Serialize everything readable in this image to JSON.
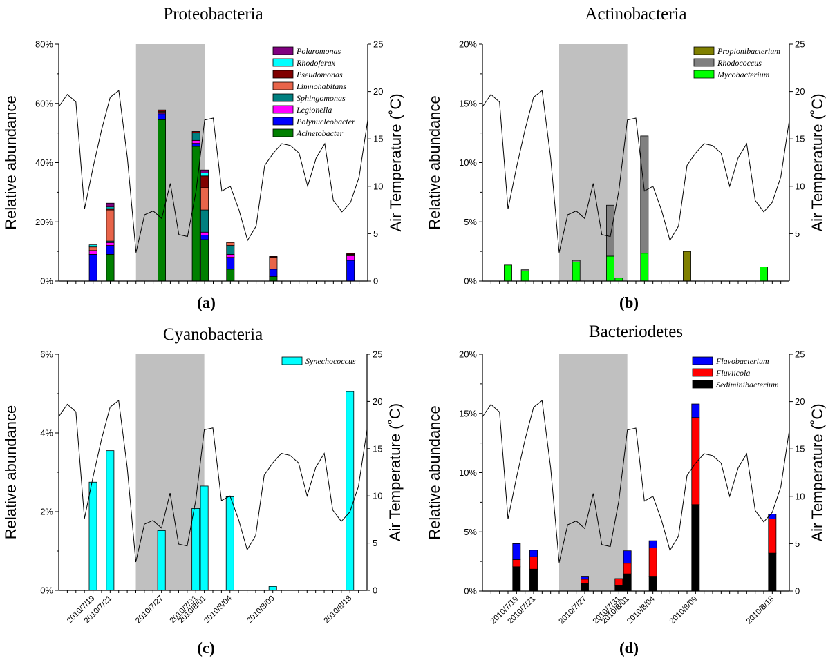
{
  "figure": {
    "x_date_labels": [
      "2010/7/19",
      "2010/7/21",
      "2010/7/27",
      "2010/7/31",
      "2010/8/01",
      "2010/8/04",
      "2010/8/09",
      "2010/8/18"
    ]
  },
  "chart_data": [
    {
      "id": "a",
      "type": "bar",
      "stacked": true,
      "title": "Proteobacteria",
      "panel_label": "(a)",
      "ylabel": "Relative  abundance",
      "y2label": "Air Temperature  (˚C)",
      "ylim": [
        0,
        80
      ],
      "yticks": [
        0,
        20,
        40,
        60,
        80
      ],
      "ytick_labels": [
        "0%",
        "20%",
        "40%",
        "60%",
        "80%"
      ],
      "y2lim": [
        0,
        25
      ],
      "y2ticks": [
        0,
        5,
        10,
        15,
        20,
        25
      ],
      "shaded_sampling_days": [
        9,
        17
      ],
      "legend_placement": "top-right",
      "series": [
        {
          "name": "Polaromonas",
          "color": "#800080"
        },
        {
          "name": "Rhodoferax",
          "color": "#00ffff"
        },
        {
          "name": "Pseudomonas",
          "color": "#800000"
        },
        {
          "name": "Limnohabitans",
          "color": "#e8644a"
        },
        {
          "name": "Sphingomonas",
          "color": "#008080"
        },
        {
          "name": "Legionella",
          "color": "#ff00ff"
        },
        {
          "name": "Polynucleobacter",
          "color": "#0000ff"
        },
        {
          "name": "Acinetobacter",
          "color": "#008000"
        }
      ],
      "bars": [
        {
          "day": 4,
          "values": {
            "Polynucleobacter": 9,
            "Legionella": 1.3,
            "Limnohabitans": 1.2,
            "Rhodoferax": 0.7
          }
        },
        {
          "day": 6,
          "values": {
            "Acinetobacter": 9,
            "Polynucleobacter": 3,
            "Legionella": 1,
            "Limnohabitans": 10.5,
            "Sphingomonas": 0.5,
            "Pseudomonas": 0.5,
            "Rhodoferax": 0.5,
            "Polaromonas": 1.3
          }
        },
        {
          "day": 12,
          "values": {
            "Acinetobacter": 54.5,
            "Polynucleobacter": 2,
            "Legionella": 0.5,
            "Limnohabitans": 0.3,
            "Pseudomonas": 0.5
          }
        },
        {
          "day": 16,
          "values": {
            "Acinetobacter": 45.5,
            "Polynucleobacter": 1,
            "Legionella": 1,
            "Sphingomonas": 2.5,
            "Pseudomonas": 0.5
          }
        },
        {
          "day": 17,
          "values": {
            "Acinetobacter": 14,
            "Polynucleobacter": 1.5,
            "Legionella": 1,
            "Sphingomonas": 7.5,
            "Limnohabitans": 7.5,
            "Pseudomonas": 4,
            "Rhodoferax": 1,
            "Polaromonas": 1
          }
        },
        {
          "day": 20,
          "values": {
            "Acinetobacter": 4,
            "Polynucleobacter": 4,
            "Legionella": 1,
            "Sphingomonas": 3,
            "Limnohabitans": 1
          }
        },
        {
          "day": 25,
          "values": {
            "Acinetobacter": 1.5,
            "Polynucleobacter": 2.5,
            "Limnohabitans": 4,
            "Pseudomonas": 0.3
          }
        },
        {
          "day": 34,
          "values": {
            "Polynucleobacter": 7,
            "Legionella": 1.5,
            "Limnohabitans": 0.5,
            "Pseudomonas": 0.3
          }
        }
      ],
      "temperature_series": [
        18.4,
        19.7,
        18.9,
        7.6,
        12,
        16,
        19.4,
        20.1,
        13,
        3,
        7,
        7.4,
        6.6,
        10.3,
        4.9,
        4.7,
        9.5,
        17,
        17.2,
        9.5,
        10,
        7.5,
        4.3,
        5.8,
        12.2,
        13.5,
        14.5,
        14.3,
        13.5,
        10,
        13,
        14.5,
        8.5,
        7.3,
        8.3,
        11,
        17
      ]
    },
    {
      "id": "b",
      "type": "bar",
      "stacked": true,
      "title": "Actinobacteria",
      "panel_label": "(b)",
      "ylabel": "Relative  abundance",
      "y2label": "Air Temperature  (˚C)",
      "ylim": [
        0,
        20
      ],
      "yticks": [
        0,
        5,
        10,
        15,
        20
      ],
      "ytick_labels": [
        "0%",
        "5%",
        "10%",
        "15%",
        "20%"
      ],
      "y2lim": [
        0,
        25
      ],
      "y2ticks": [
        5,
        10,
        15,
        20,
        25
      ],
      "shaded_sampling_days": [
        9,
        17
      ],
      "legend_placement": "top-right",
      "series": [
        {
          "name": "Propionibacterium",
          "color": "#808000"
        },
        {
          "name": "Rhodococcus",
          "color": "#808080"
        },
        {
          "name": "Mycobacterium",
          "color": "#00ff00"
        }
      ],
      "bars": [
        {
          "day": 3,
          "values": {
            "Mycobacterium": 1.35
          }
        },
        {
          "day": 5,
          "values": {
            "Mycobacterium": 0.85,
            "Rhodococcus": 0.1
          }
        },
        {
          "day": 11,
          "values": {
            "Mycobacterium": 1.6,
            "Rhodococcus": 0.15
          }
        },
        {
          "day": 15,
          "values": {
            "Mycobacterium": 2.1,
            "Rhodococcus": 4.3
          }
        },
        {
          "day": 16,
          "values": {
            "Mycobacterium": 0.25
          }
        },
        {
          "day": 19,
          "values": {
            "Mycobacterium": 2.35,
            "Rhodococcus": 9.9
          }
        },
        {
          "day": 24,
          "values": {
            "Propionibacterium": 2.5
          }
        },
        {
          "day": 33,
          "values": {
            "Mycobacterium": 1.2
          }
        }
      ],
      "temperature_series": [
        18.4,
        19.7,
        18.9,
        7.6,
        12,
        16,
        19.4,
        20.1,
        13,
        3,
        7,
        7.4,
        6.6,
        10.3,
        4.9,
        4.7,
        9.5,
        17,
        17.2,
        9.5,
        10,
        7.5,
        4.3,
        5.8,
        12.2,
        13.5,
        14.5,
        14.3,
        13.5,
        10,
        13,
        14.5,
        8.5,
        7.3,
        8.3,
        11,
        17
      ]
    },
    {
      "id": "c",
      "type": "bar",
      "stacked": false,
      "title": "Cyanobacteria",
      "panel_label": "(c)",
      "ylabel": "Relative  abundance",
      "y2label": "Air Temperature  (˚C)",
      "ylim": [
        0,
        6
      ],
      "yticks": [
        0,
        2,
        4,
        6
      ],
      "ytick_labels": [
        "0%",
        "2%",
        "4%",
        "6%"
      ],
      "y2lim": [
        0,
        25
      ],
      "y2ticks": [
        0,
        5,
        10,
        15,
        20,
        25
      ],
      "shaded_sampling_days": [
        9,
        17
      ],
      "legend_placement": "top-right",
      "series": [
        {
          "name": "Synechococcus",
          "color": "#00ffff"
        }
      ],
      "bars": [
        {
          "day": 4,
          "values": {
            "Synechococcus": 2.75
          }
        },
        {
          "day": 6,
          "values": {
            "Synechococcus": 3.55
          }
        },
        {
          "day": 12,
          "values": {
            "Synechococcus": 1.52
          }
        },
        {
          "day": 16,
          "values": {
            "Synechococcus": 2.08
          }
        },
        {
          "day": 17,
          "values": {
            "Synechococcus": 2.65
          }
        },
        {
          "day": 20,
          "values": {
            "Synechococcus": 2.38
          }
        },
        {
          "day": 25,
          "values": {
            "Synechococcus": 0.1
          }
        },
        {
          "day": 34,
          "values": {
            "Synechococcus": 5.05
          }
        }
      ],
      "temperature_series": [
        18.4,
        19.7,
        18.9,
        7.6,
        12,
        16,
        19.4,
        20.1,
        13,
        3,
        7,
        7.4,
        6.6,
        10.3,
        4.9,
        4.7,
        9.5,
        17,
        17.2,
        9.5,
        10,
        7.5,
        4.3,
        5.8,
        12.2,
        13.5,
        14.5,
        14.3,
        13.5,
        10,
        13,
        14.5,
        8.5,
        7.3,
        8.3,
        11,
        17
      ]
    },
    {
      "id": "d",
      "type": "bar",
      "stacked": true,
      "title": "Bacteriodetes",
      "panel_label": "(d)",
      "ylabel": "Relative  abundance",
      "y2label": "Air Temperature  (˚C)",
      "ylim": [
        0,
        20
      ],
      "yticks": [
        0,
        5,
        10,
        15,
        20
      ],
      "ytick_labels": [
        "0%",
        "5%",
        "10%",
        "15%",
        "20%"
      ],
      "y2lim": [
        0,
        25
      ],
      "y2ticks": [
        0,
        5,
        10,
        15,
        20,
        25
      ],
      "shaded_sampling_days": [
        9,
        17
      ],
      "legend_placement": "top-right",
      "series": [
        {
          "name": "Flavobacterium",
          "color": "#0000ff"
        },
        {
          "name": "Fluviicola",
          "color": "#ff0000"
        },
        {
          "name": "Sediminibacterium",
          "color": "#000000"
        }
      ],
      "bars": [
        {
          "day": 4,
          "values": {
            "Sediminibacterium": 2.05,
            "Fluviicola": 0.6,
            "Flavobacterium": 1.35
          }
        },
        {
          "day": 6,
          "values": {
            "Sediminibacterium": 1.85,
            "Fluviicola": 1.05,
            "Flavobacterium": 0.55
          }
        },
        {
          "day": 12,
          "values": {
            "Sediminibacterium": 0.65,
            "Fluviicola": 0.35,
            "Flavobacterium": 0.25
          }
        },
        {
          "day": 16,
          "values": {
            "Sediminibacterium": 0.5,
            "Fluviicola": 0.55
          }
        },
        {
          "day": 17,
          "values": {
            "Sediminibacterium": 1.45,
            "Fluviicola": 0.9,
            "Flavobacterium": 1.05
          }
        },
        {
          "day": 20,
          "values": {
            "Sediminibacterium": 1.25,
            "Fluviicola": 2.4,
            "Flavobacterium": 0.6
          }
        },
        {
          "day": 25,
          "values": {
            "Sediminibacterium": 7.3,
            "Fluviicola": 7.35,
            "Flavobacterium": 1.15
          }
        },
        {
          "day": 34,
          "values": {
            "Sediminibacterium": 3.2,
            "Fluviicola": 2.9,
            "Flavobacterium": 0.4
          }
        }
      ],
      "temperature_series": [
        18.4,
        19.7,
        18.9,
        7.6,
        12,
        16,
        19.4,
        20.1,
        13,
        3,
        7,
        7.4,
        6.6,
        10.3,
        4.9,
        4.7,
        9.5,
        17,
        17.2,
        9.5,
        10,
        7.5,
        4.3,
        5.8,
        12.2,
        13.5,
        14.5,
        14.3,
        13.5,
        10,
        13,
        14.5,
        8.5,
        7.3,
        8.3,
        11,
        17
      ]
    }
  ]
}
